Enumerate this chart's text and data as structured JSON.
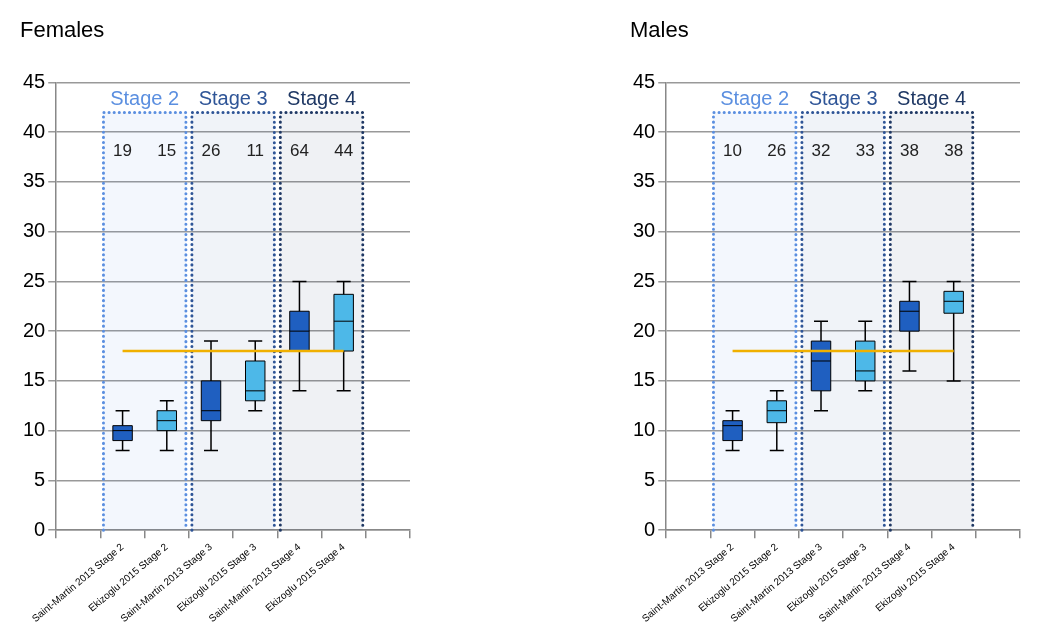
{
  "chart_data": [
    {
      "type": "box",
      "title": "Females",
      "categories": [
        null,
        "Saint-Martin 2013 Stage 2",
        "Ekizoglu 2015 Stage 2",
        "Saint-Martin 2013 Stage 3",
        "Ekizoglu 2015 Stage 3",
        "Saint-Martin 2013 Stage 4",
        "Ekizoglu 2015 Stage 4",
        null
      ],
      "boxes": [
        null,
        {
          "low": 8,
          "q1": 9,
          "median": 10,
          "q3": 10.5,
          "high": 12
        },
        {
          "low": 8,
          "q1": 10,
          "median": 11,
          "q3": 12,
          "high": 13
        },
        {
          "low": 8,
          "q1": 11,
          "median": 12,
          "q3": 15,
          "high": 19
        },
        {
          "low": 12,
          "q1": 13,
          "median": 14,
          "q3": 17,
          "high": 19
        },
        {
          "low": 14,
          "q1": 18,
          "median": 20,
          "q3": 22,
          "high": 25
        },
        {
          "low": 14,
          "q1": 18,
          "median": 21,
          "q3": 23.7,
          "high": 25
        },
        null
      ],
      "colors": [
        null,
        "#1f5fc0",
        "#4db8e8",
        "#1f5fc0",
        "#4db8e8",
        "#1f5fc0",
        "#4db8e8",
        null
      ],
      "ylim": [
        0,
        45
      ],
      "yticks": [
        0,
        5,
        10,
        15,
        20,
        25,
        30,
        35,
        40,
        45
      ],
      "grid": "y",
      "legend": false,
      "ref_lines": [
        {
          "axis": "y",
          "value": 18,
          "color": "#f0b000"
        }
      ],
      "bands": [
        {
          "axis": "x",
          "from": "Saint-Martin 2013 Stage 2",
          "to": "Ekizoglu 2015 Stage 2",
          "label": "Stage 2",
          "color": "#5b8fe0"
        },
        {
          "axis": "x",
          "from": "Saint-Martin 2013 Stage 3",
          "to": "Ekizoglu 2015 Stage 3",
          "label": "Stage 3",
          "color": "#2f5597"
        },
        {
          "axis": "x",
          "from": "Saint-Martin 2013 Stage 4",
          "to": "Ekizoglu 2015 Stage 4",
          "label": "Stage 4",
          "color": "#1f3864"
        }
      ],
      "annotations": [
        "19",
        "15",
        "26",
        "11",
        "64",
        "44"
      ]
    },
    {
      "type": "box",
      "title": "Males",
      "categories": [
        null,
        "Saint-Martin 2013 Stage 2",
        "Ekizoglu 2015 Stage 2",
        "Saint-Martin 2013 Stage 3",
        "Ekizoglu 2015 Stage 3",
        "Saint-Martin 2013 Stage 4",
        "Ekizoglu 2015 Stage 4",
        null
      ],
      "boxes": [
        null,
        {
          "low": 8,
          "q1": 9,
          "median": 10.5,
          "q3": 11,
          "high": 12
        },
        {
          "low": 8,
          "q1": 10.8,
          "median": 12,
          "q3": 13,
          "high": 14
        },
        {
          "low": 12,
          "q1": 14,
          "median": 17,
          "q3": 19,
          "high": 21
        },
        {
          "low": 14,
          "q1": 15,
          "median": 16,
          "q3": 19,
          "high": 21
        },
        {
          "low": 16,
          "q1": 20,
          "median": 22,
          "q3": 23,
          "high": 25
        },
        {
          "low": 15,
          "q1": 21.8,
          "median": 23,
          "q3": 24,
          "high": 25
        },
        null
      ],
      "colors": [
        null,
        "#1f5fc0",
        "#4db8e8",
        "#1f5fc0",
        "#4db8e8",
        "#1f5fc0",
        "#4db8e8",
        null
      ],
      "ylim": [
        0,
        45
      ],
      "yticks": [
        0,
        5,
        10,
        15,
        20,
        25,
        30,
        35,
        40,
        45
      ],
      "grid": "y",
      "legend": false,
      "ref_lines": [
        {
          "axis": "y",
          "value": 18,
          "color": "#f0b000"
        }
      ],
      "bands": [
        {
          "axis": "x",
          "from": "Saint-Martin 2013 Stage 2",
          "to": "Ekizoglu 2015 Stage 2",
          "label": "Stage 2",
          "color": "#5b8fe0"
        },
        {
          "axis": "x",
          "from": "Saint-Martin 2013 Stage 3",
          "to": "Ekizoglu 2015 Stage 3",
          "label": "Stage 3",
          "color": "#2f5597"
        },
        {
          "axis": "x",
          "from": "Saint-Martin 2013 Stage 4",
          "to": "Ekizoglu 2015 Stage 4",
          "label": "Stage 4",
          "color": "#1f3864"
        }
      ],
      "annotations": [
        "10",
        "26",
        "32",
        "33",
        "38",
        "38"
      ]
    }
  ]
}
